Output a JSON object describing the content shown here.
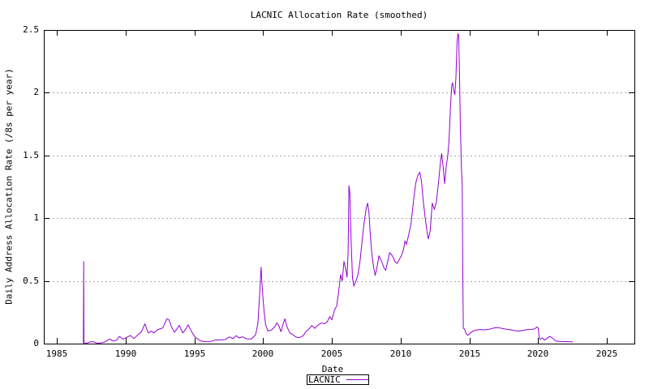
{
  "chart_data": {
    "type": "line",
    "title": "LACNIC Allocation Rate (smoothed)",
    "xlabel": "Date",
    "ylabel": "Daily Address Allocation Rate (/8s per year)",
    "xlim": [
      1984.05,
      2027.0
    ],
    "ylim": [
      0,
      2.5
    ],
    "x_ticks": [
      1985,
      1990,
      1995,
      2000,
      2005,
      2010,
      2015,
      2020,
      2025
    ],
    "y_ticks": [
      0,
      0.5,
      1,
      1.5,
      2,
      2.5
    ],
    "grid": "horizontal-dotted",
    "grid_color": "#a8a8a8",
    "axis_color": "#000000",
    "legend_position": "below",
    "series": [
      {
        "name": "LACNIC",
        "color": "#9400d3",
        "points": [
          [
            1986.93,
            0.005
          ],
          [
            1986.95,
            0.655
          ],
          [
            1986.97,
            0.005
          ],
          [
            1987.2,
            0.004
          ],
          [
            1987.45,
            0.015
          ],
          [
            1987.7,
            0.014
          ],
          [
            1987.9,
            0.004
          ],
          [
            1988.15,
            0.004
          ],
          [
            1988.45,
            0.012
          ],
          [
            1988.75,
            0.03
          ],
          [
            1988.85,
            0.037
          ],
          [
            1989.1,
            0.02
          ],
          [
            1989.35,
            0.028
          ],
          [
            1989.55,
            0.058
          ],
          [
            1989.8,
            0.035
          ],
          [
            1990.05,
            0.048
          ],
          [
            1990.35,
            0.065
          ],
          [
            1990.6,
            0.04
          ],
          [
            1990.9,
            0.07
          ],
          [
            1991.15,
            0.095
          ],
          [
            1991.4,
            0.157
          ],
          [
            1991.65,
            0.085
          ],
          [
            1991.85,
            0.1
          ],
          [
            1992.05,
            0.086
          ],
          [
            1992.35,
            0.112
          ],
          [
            1992.7,
            0.125
          ],
          [
            1993.0,
            0.198
          ],
          [
            1993.15,
            0.19
          ],
          [
            1993.35,
            0.13
          ],
          [
            1993.55,
            0.09
          ],
          [
            1993.75,
            0.12
          ],
          [
            1993.9,
            0.146
          ],
          [
            1994.15,
            0.085
          ],
          [
            1994.4,
            0.12
          ],
          [
            1994.55,
            0.15
          ],
          [
            1994.8,
            0.095
          ],
          [
            1995.0,
            0.06
          ],
          [
            1995.2,
            0.04
          ],
          [
            1995.45,
            0.021
          ],
          [
            1995.75,
            0.016
          ],
          [
            1996.1,
            0.015
          ],
          [
            1996.5,
            0.028
          ],
          [
            1996.9,
            0.03
          ],
          [
            1997.25,
            0.032
          ],
          [
            1997.55,
            0.054
          ],
          [
            1997.8,
            0.04
          ],
          [
            1998.05,
            0.063
          ],
          [
            1998.25,
            0.045
          ],
          [
            1998.5,
            0.054
          ],
          [
            1998.8,
            0.038
          ],
          [
            1999.15,
            0.037
          ],
          [
            1999.45,
            0.07
          ],
          [
            1999.62,
            0.16
          ],
          [
            1999.75,
            0.4
          ],
          [
            1999.85,
            0.61
          ],
          [
            1999.95,
            0.42
          ],
          [
            2000.05,
            0.28
          ],
          [
            2000.18,
            0.15
          ],
          [
            2000.35,
            0.1
          ],
          [
            2000.6,
            0.108
          ],
          [
            2000.85,
            0.135
          ],
          [
            2001.0,
            0.165
          ],
          [
            2001.15,
            0.14
          ],
          [
            2001.3,
            0.095
          ],
          [
            2001.45,
            0.155
          ],
          [
            2001.58,
            0.198
          ],
          [
            2001.75,
            0.13
          ],
          [
            2001.95,
            0.085
          ],
          [
            2002.2,
            0.068
          ],
          [
            2002.4,
            0.052
          ],
          [
            2002.65,
            0.048
          ],
          [
            2002.9,
            0.062
          ],
          [
            2003.15,
            0.1
          ],
          [
            2003.35,
            0.118
          ],
          [
            2003.55,
            0.145
          ],
          [
            2003.75,
            0.122
          ],
          [
            2004.0,
            0.148
          ],
          [
            2004.25,
            0.165
          ],
          [
            2004.45,
            0.158
          ],
          [
            2004.65,
            0.172
          ],
          [
            2004.85,
            0.215
          ],
          [
            2005.0,
            0.19
          ],
          [
            2005.2,
            0.27
          ],
          [
            2005.35,
            0.3
          ],
          [
            2005.5,
            0.42
          ],
          [
            2005.63,
            0.55
          ],
          [
            2005.75,
            0.5
          ],
          [
            2005.88,
            0.655
          ],
          [
            2006.0,
            0.6
          ],
          [
            2006.1,
            0.53
          ],
          [
            2006.18,
            0.72
          ],
          [
            2006.24,
            1.26
          ],
          [
            2006.3,
            1.21
          ],
          [
            2006.4,
            0.82
          ],
          [
            2006.5,
            0.52
          ],
          [
            2006.6,
            0.458
          ],
          [
            2006.75,
            0.5
          ],
          [
            2006.9,
            0.55
          ],
          [
            2007.05,
            0.66
          ],
          [
            2007.2,
            0.82
          ],
          [
            2007.35,
            0.97
          ],
          [
            2007.5,
            1.08
          ],
          [
            2007.6,
            1.12
          ],
          [
            2007.7,
            1.04
          ],
          [
            2007.8,
            0.86
          ],
          [
            2007.9,
            0.72
          ],
          [
            2008.05,
            0.6
          ],
          [
            2008.15,
            0.543
          ],
          [
            2008.3,
            0.62
          ],
          [
            2008.42,
            0.7
          ],
          [
            2008.6,
            0.66
          ],
          [
            2008.8,
            0.6
          ],
          [
            2008.92,
            0.585
          ],
          [
            2009.05,
            0.65
          ],
          [
            2009.2,
            0.725
          ],
          [
            2009.4,
            0.7
          ],
          [
            2009.6,
            0.65
          ],
          [
            2009.75,
            0.64
          ],
          [
            2009.9,
            0.67
          ],
          [
            2010.05,
            0.7
          ],
          [
            2010.2,
            0.745
          ],
          [
            2010.32,
            0.82
          ],
          [
            2010.42,
            0.79
          ],
          [
            2010.55,
            0.85
          ],
          [
            2010.75,
            0.95
          ],
          [
            2010.95,
            1.15
          ],
          [
            2011.1,
            1.28
          ],
          [
            2011.25,
            1.34
          ],
          [
            2011.4,
            1.365
          ],
          [
            2011.52,
            1.29
          ],
          [
            2011.65,
            1.13
          ],
          [
            2011.8,
            0.99
          ],
          [
            2011.92,
            0.89
          ],
          [
            2012.02,
            0.835
          ],
          [
            2012.15,
            0.9
          ],
          [
            2012.3,
            1.12
          ],
          [
            2012.45,
            1.07
          ],
          [
            2012.6,
            1.13
          ],
          [
            2012.75,
            1.28
          ],
          [
            2012.9,
            1.45
          ],
          [
            2012.98,
            1.515
          ],
          [
            2013.08,
            1.42
          ],
          [
            2013.2,
            1.275
          ],
          [
            2013.32,
            1.42
          ],
          [
            2013.42,
            1.49
          ],
          [
            2013.52,
            1.62
          ],
          [
            2013.62,
            1.88
          ],
          [
            2013.72,
            2.06
          ],
          [
            2013.78,
            2.08
          ],
          [
            2013.86,
            2.02
          ],
          [
            2013.94,
            1.985
          ],
          [
            2014.02,
            2.12
          ],
          [
            2014.1,
            2.4
          ],
          [
            2014.16,
            2.47
          ],
          [
            2014.22,
            2.46
          ],
          [
            2014.28,
            2.15
          ],
          [
            2014.34,
            1.75
          ],
          [
            2014.42,
            1.4
          ],
          [
            2014.48,
            1.26
          ],
          [
            2014.52,
            0.55
          ],
          [
            2014.56,
            0.123
          ],
          [
            2014.65,
            0.115
          ],
          [
            2014.78,
            0.075
          ],
          [
            2014.9,
            0.066
          ],
          [
            2015.05,
            0.082
          ],
          [
            2015.25,
            0.1
          ],
          [
            2015.5,
            0.108
          ],
          [
            2015.8,
            0.112
          ],
          [
            2016.1,
            0.11
          ],
          [
            2016.45,
            0.115
          ],
          [
            2016.8,
            0.125
          ],
          [
            2017.1,
            0.128
          ],
          [
            2017.4,
            0.12
          ],
          [
            2017.7,
            0.115
          ],
          [
            2018.0,
            0.11
          ],
          [
            2018.3,
            0.103
          ],
          [
            2018.6,
            0.1
          ],
          [
            2018.9,
            0.105
          ],
          [
            2019.2,
            0.112
          ],
          [
            2019.5,
            0.112
          ],
          [
            2019.75,
            0.118
          ],
          [
            2019.92,
            0.132
          ],
          [
            2020.0,
            0.125
          ],
          [
            2020.08,
            0.05
          ],
          [
            2020.15,
            0.034
          ],
          [
            2020.3,
            0.046
          ],
          [
            2020.45,
            0.028
          ],
          [
            2020.62,
            0.04
          ],
          [
            2020.85,
            0.058
          ],
          [
            2021.05,
            0.042
          ],
          [
            2021.28,
            0.022
          ],
          [
            2021.55,
            0.018
          ],
          [
            2021.9,
            0.016
          ],
          [
            2022.2,
            0.015
          ],
          [
            2022.5,
            0.014
          ]
        ]
      }
    ]
  }
}
